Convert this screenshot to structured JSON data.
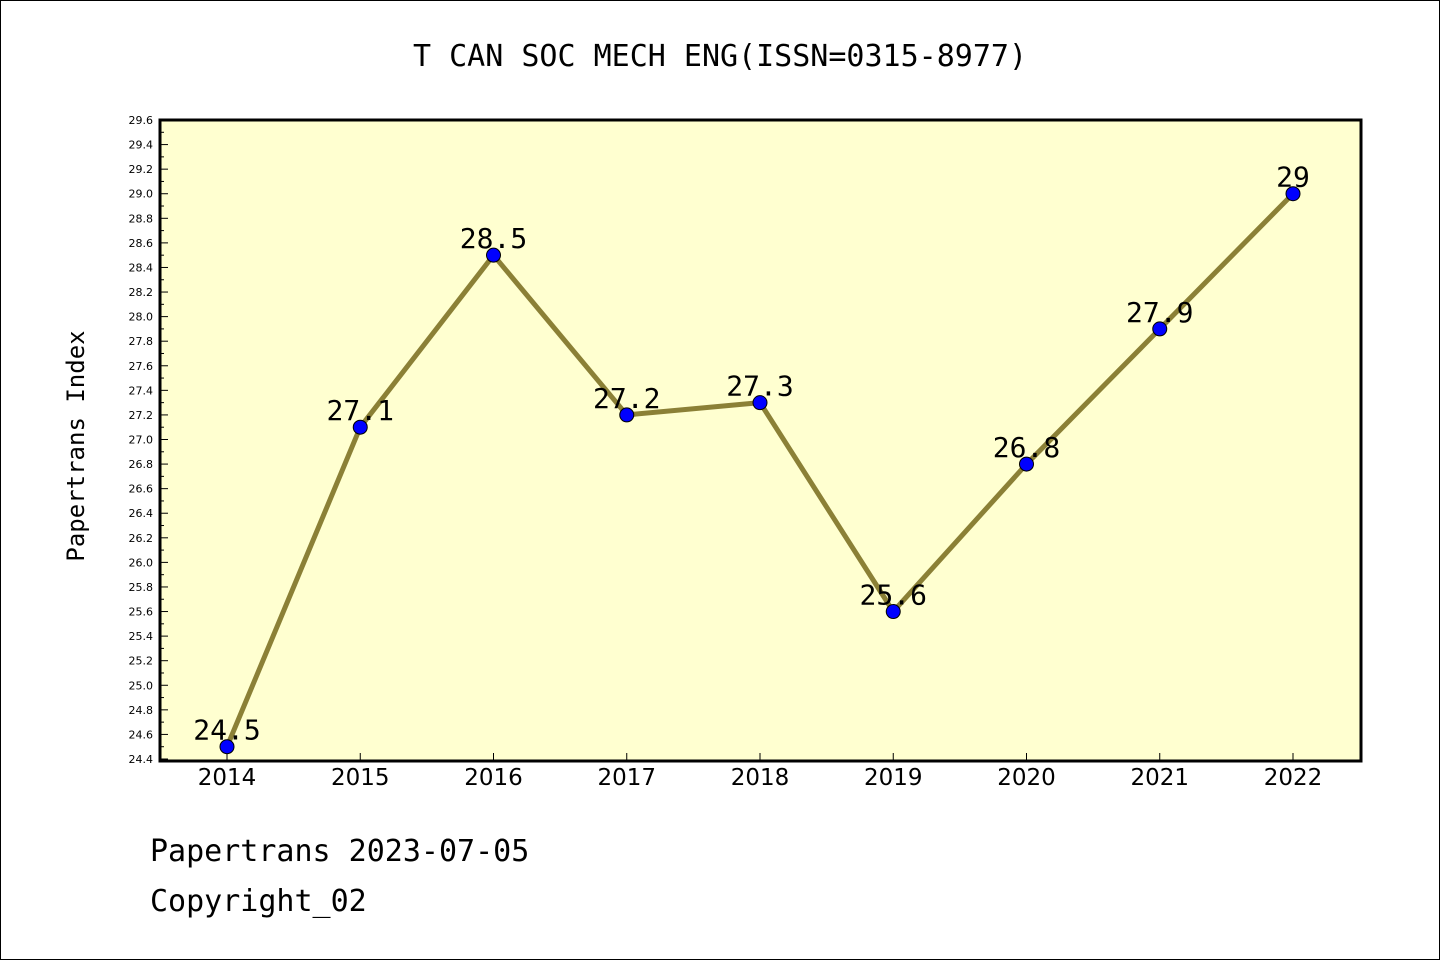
{
  "chart_data": {
    "type": "line",
    "title": "T CAN SOC MECH ENG(ISSN=0315-8977)",
    "ylabel": "Papertrans Index",
    "xlabel": "",
    "categories": [
      "2014",
      "2015",
      "2016",
      "2017",
      "2018",
      "2019",
      "2020",
      "2021",
      "2022"
    ],
    "series": [
      {
        "values": [
          24.5,
          27.1,
          28.5,
          27.2,
          27.3,
          25.6,
          26.8,
          27.9,
          29.0
        ]
      }
    ],
    "data_labels": [
      "24.5",
      "27.1",
      "28.5",
      "27.2",
      "27.3",
      "25.6",
      "26.8",
      "27.9",
      "29"
    ],
    "ylim": [
      24.4,
      29.6
    ],
    "yticks": [
      "24.4",
      "24.6",
      "24.8",
      "25.0",
      "25.2",
      "25.4",
      "25.6",
      "25.8",
      "26.0",
      "26.2",
      "26.4",
      "26.6",
      "26.8",
      "27.0",
      "27.2",
      "27.4",
      "27.6",
      "27.8",
      "28.0",
      "28.2",
      "28.4",
      "28.6",
      "28.8",
      "29.0",
      "29.2",
      "29.4",
      "29.6"
    ],
    "grid": false,
    "colors": {
      "plot_background": "#ffffd0",
      "line": "#8b8036",
      "marker": "#0000ff"
    }
  },
  "footer": {
    "line1": "Papertrans 2023-07-05",
    "line2": "Copyright_02"
  }
}
